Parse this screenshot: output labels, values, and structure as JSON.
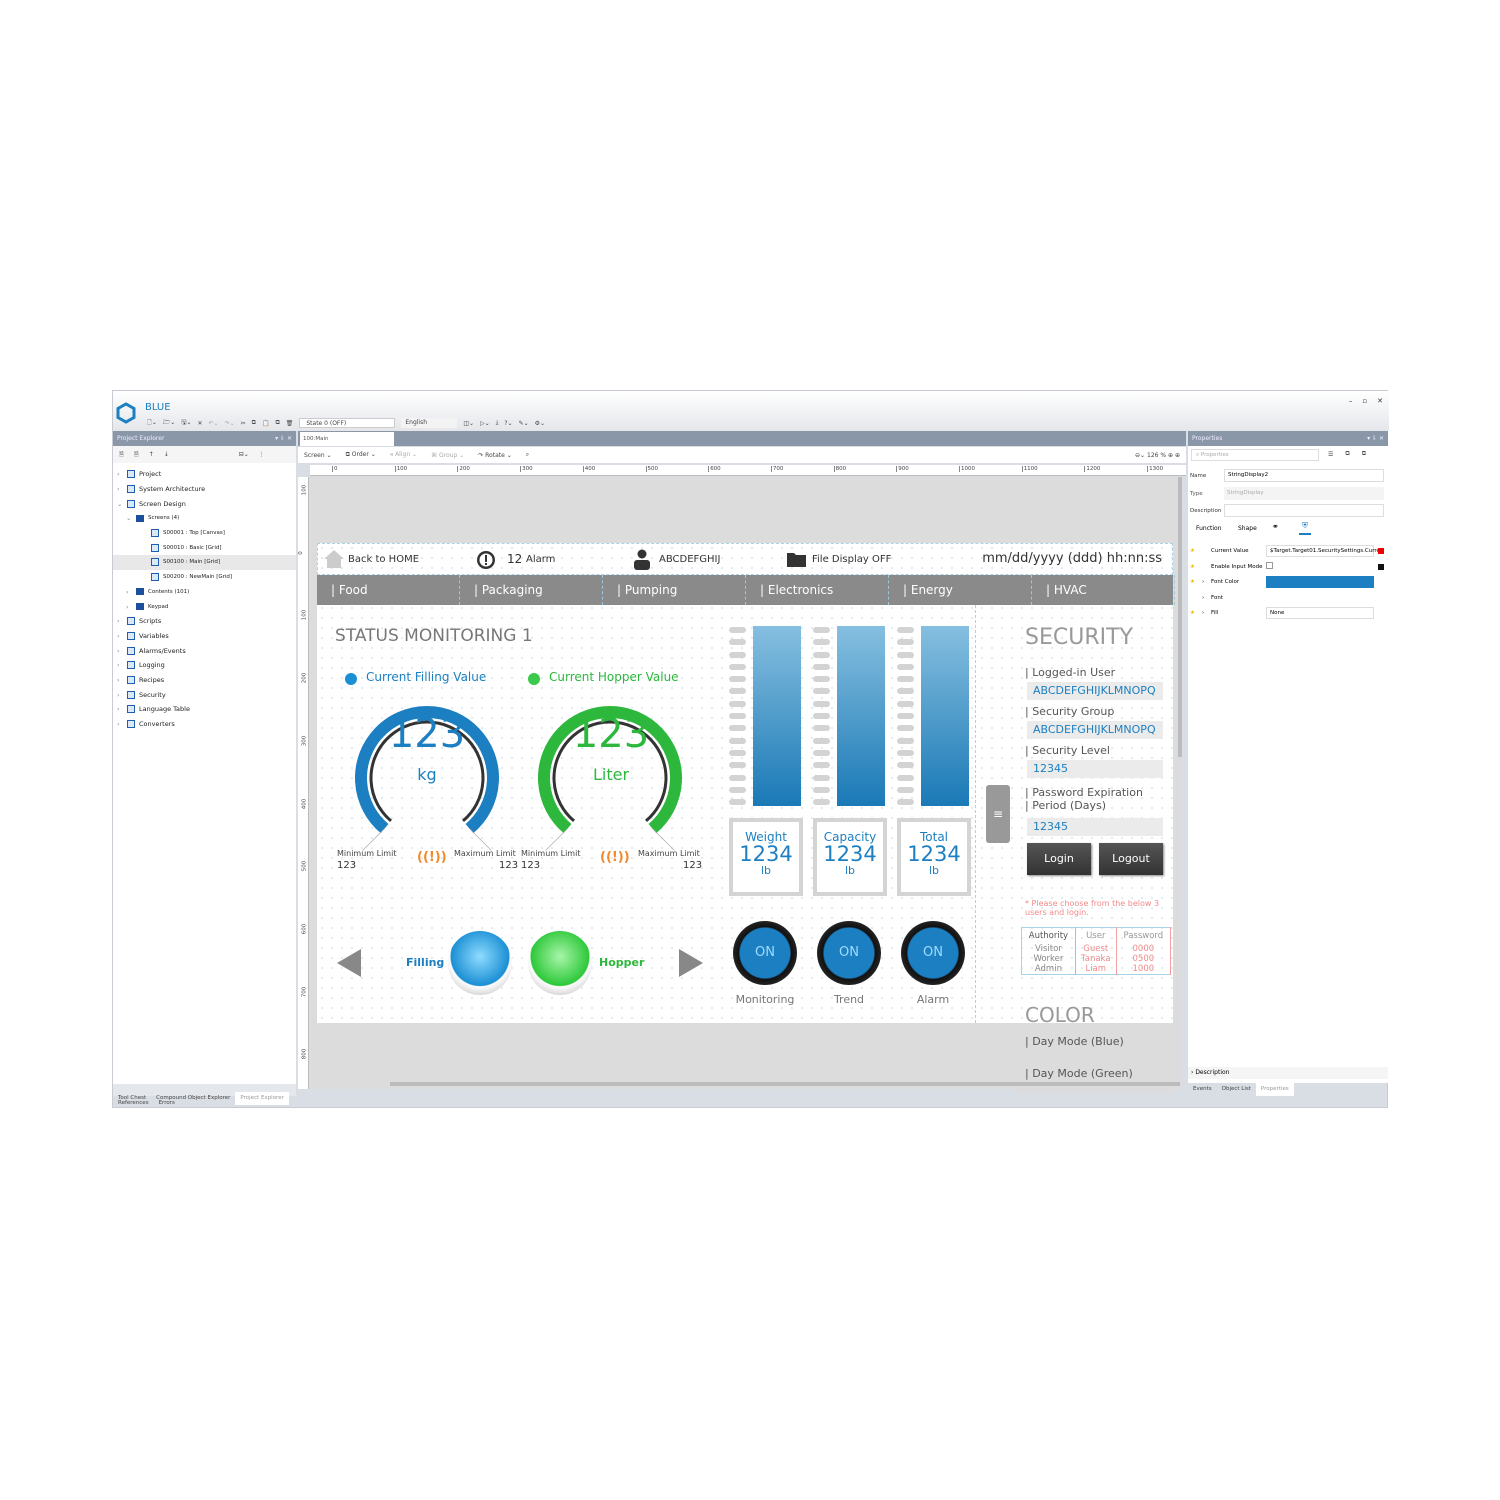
{
  "app": {
    "title": "BLUE",
    "window_controls": [
      "–",
      "▫",
      "✕"
    ]
  },
  "toolbar": {
    "state_select": "State 0 (OFF)",
    "language_select": "English"
  },
  "project_explorer": {
    "title": "Project Explorer",
    "items": [
      {
        "label": "Project",
        "level": 0
      },
      {
        "label": "System Architecture",
        "level": 0
      },
      {
        "label": "Screen Design",
        "level": 0,
        "expanded": true
      },
      {
        "label": "Screens (4)",
        "level": 1,
        "folder": true,
        "expanded": true
      },
      {
        "label": "S00001 : Top [Canvas]",
        "level": 2
      },
      {
        "label": "S00010 : Basic [Grid]",
        "level": 2
      },
      {
        "label": "S00100 : Main [Grid]",
        "level": 2,
        "selected": true
      },
      {
        "label": "S00200 : NewMain [Grid]",
        "level": 2
      },
      {
        "label": "Contents (101)",
        "level": 1,
        "folder": true
      },
      {
        "label": "Keypad",
        "level": 1,
        "folder": true
      },
      {
        "label": "Scripts",
        "level": 0
      },
      {
        "label": "Variables",
        "level": 0
      },
      {
        "label": "Alarms/Events",
        "level": 0
      },
      {
        "label": "Logging",
        "level": 0
      },
      {
        "label": "Recipes",
        "level": 0
      },
      {
        "label": "Security",
        "level": 0
      },
      {
        "label": "Language Table",
        "level": 0
      },
      {
        "label": "Converters",
        "level": 0
      }
    ],
    "bottom_tabs": [
      "Tool Chest",
      "Compound Object Explorer",
      "Project Explorer"
    ],
    "bottom_tabs2": [
      "References",
      "Errors"
    ]
  },
  "editor": {
    "tab": "100:Main",
    "tools": {
      "screen": "Screen",
      "order": "Order",
      "align": "Align",
      "group": "Group",
      "rotate": "Rotate"
    },
    "zoom": "126",
    "zoom_unit": "%",
    "hruler": [
      "0",
      "100",
      "200",
      "300",
      "400",
      "500",
      "600",
      "700",
      "800",
      "900",
      "1000",
      "1100",
      "1200",
      "1300"
    ],
    "vruler": [
      "100",
      "0",
      "100",
      "200",
      "300",
      "400",
      "500",
      "600",
      "700",
      "800"
    ]
  },
  "hmi": {
    "header": {
      "home": "Back to HOME",
      "alarm_count": "12",
      "alarm": "Alarm",
      "user": "ABCDEFGHIJ",
      "file": "File Display OFF",
      "datetime": "mm/dd/yyyy (ddd) hh:nn:ss"
    },
    "nav": [
      "| Food",
      "| Packaging",
      "| Pumping",
      "| Electronics",
      "| Energy",
      "| HVAC"
    ],
    "status": {
      "title": "STATUS MONITORING 1",
      "legend_filling": "Current Filling Value",
      "legend_hopper": "Current Hopper Value",
      "gauge1": {
        "value": "123",
        "unit": "kg",
        "min_label": "Minimum Limit",
        "min": "123",
        "max_label": "Maximum Limit",
        "max": "123",
        "color": "#1b7fc1"
      },
      "gauge2": {
        "value": "123",
        "unit": "Liter",
        "min_label": "Minimum Limit",
        "min": "123",
        "max_label": "Maximum Limit",
        "max": "123",
        "color": "#2db83d"
      },
      "filling": "Filling",
      "hopper": "Hopper"
    },
    "cards": [
      {
        "label": "Weight",
        "value": "1234",
        "unit": "lb"
      },
      {
        "label": "Capacity",
        "value": "1234",
        "unit": "lb"
      },
      {
        "label": "Total",
        "value": "1234",
        "unit": "lb"
      }
    ],
    "switches": [
      {
        "state": "ON",
        "label": "Monitoring"
      },
      {
        "state": "ON",
        "label": "Trend"
      },
      {
        "state": "ON",
        "label": "Alarm"
      }
    ],
    "security": {
      "title": "SECURITY",
      "logged_label": "| Logged-in User",
      "logged": "ABCDEFGHIJKLMNOPQ",
      "group_label": "| Security Group",
      "group": "ABCDEFGHIJKLMNOPQ",
      "level_label": "| Security Level",
      "level": "12345",
      "pwd_label1": "| Password Expiration",
      "pwd_label2": "| Period (Days)",
      "pwd": "12345",
      "login": "Login",
      "logout": "Logout",
      "note": "* Please choose from the below 3 users and login.",
      "table": {
        "headers": [
          "Authority",
          "User",
          "Password"
        ],
        "rows": [
          [
            "Visitor",
            "Guest",
            "0000"
          ],
          [
            "Worker",
            "Tanaka",
            "0500"
          ],
          [
            "Admin",
            "Liam",
            "1000"
          ]
        ]
      }
    },
    "color": {
      "title": "COLOR",
      "items": [
        "| Day Mode (Blue)",
        "| Day Mode (Green)"
      ]
    }
  },
  "properties": {
    "title": "Properties",
    "search_placeholder": "Properties",
    "name_label": "Name",
    "name": "StringDisplay2",
    "type_label": "Type",
    "type": "StringDisplay",
    "desc_label": "Description",
    "tabs": [
      "Function",
      "Shape"
    ],
    "rows": [
      {
        "label": "Current Value",
        "value": "$Target.Target01.SecuritySettings.Curren"
      },
      {
        "label": "Enable Input Mode"
      },
      {
        "label": "Font Color",
        "color": "#1b7fc1"
      },
      {
        "label": "Font"
      },
      {
        "label": "Fill",
        "value": "None"
      }
    ],
    "description": "Description",
    "bottom_tabs": [
      "Events",
      "Object List",
      "Properties"
    ]
  }
}
